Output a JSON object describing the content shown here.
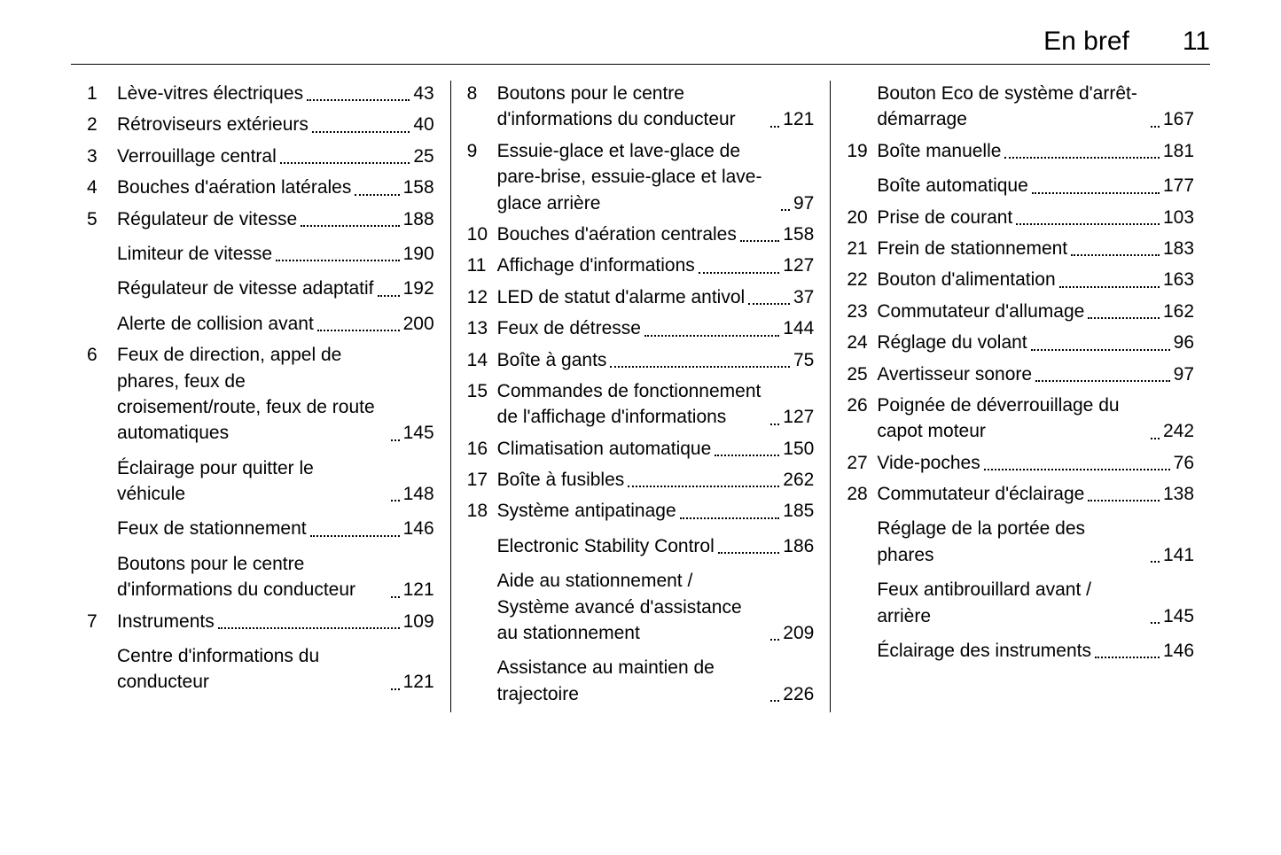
{
  "header": {
    "title": "En bref",
    "page": "11"
  },
  "columns": [
    [
      {
        "num": "1",
        "lines": [
          {
            "label": "Lève-vitres électriques",
            "page": "43"
          }
        ]
      },
      {
        "num": "2",
        "lines": [
          {
            "label": "Rétroviseurs extérieurs",
            "page": "40"
          }
        ]
      },
      {
        "num": "3",
        "lines": [
          {
            "label": "Verrouillage central",
            "page": "25"
          }
        ]
      },
      {
        "num": "4",
        "lines": [
          {
            "label": "Bouches d'aération latérales",
            "page": "158"
          }
        ]
      },
      {
        "num": "5",
        "lines": [
          {
            "label": "Régulateur de vitesse",
            "page": "188"
          },
          {
            "label": "Limiteur de vitesse",
            "page": "190",
            "sub": true
          },
          {
            "label": "Régulateur de vitesse adaptatif",
            "page": "192",
            "sub": true
          },
          {
            "label": "Alerte de collision avant",
            "page": "200",
            "sub": true
          }
        ]
      },
      {
        "num": "6",
        "lines": [
          {
            "label": "Feux de direction, appel de phares, feux de croisement/route, feux de route automatiques",
            "page": "145"
          },
          {
            "label": "Éclairage pour quitter le véhicule",
            "page": "148",
            "sub": true
          },
          {
            "label": "Feux de stationnement",
            "page": "146",
            "sub": true
          },
          {
            "label": "Boutons pour le centre d'informations du conducteur",
            "page": "121",
            "sub": true
          }
        ]
      },
      {
        "num": "7",
        "lines": [
          {
            "label": "Instruments",
            "page": "109"
          },
          {
            "label": "Centre d'informations du conducteur",
            "page": "121",
            "sub": true
          }
        ]
      }
    ],
    [
      {
        "num": "8",
        "lines": [
          {
            "label": "Boutons pour le centre d'informations du conducteur",
            "page": "121"
          }
        ]
      },
      {
        "num": "9",
        "lines": [
          {
            "label": "Essuie-glace et lave-glace de pare-brise, essuie-glace et lave-glace arrière",
            "page": "97"
          }
        ]
      },
      {
        "num": "10",
        "lines": [
          {
            "label": "Bouches d'aération centrales",
            "page": "158"
          }
        ]
      },
      {
        "num": "11",
        "lines": [
          {
            "label": "Affichage d'informations",
            "page": "127"
          }
        ]
      },
      {
        "num": "12",
        "lines": [
          {
            "label": "LED de statut d'alarme antivol",
            "page": "37"
          }
        ]
      },
      {
        "num": "13",
        "lines": [
          {
            "label": "Feux de détresse",
            "page": "144"
          }
        ]
      },
      {
        "num": "14",
        "lines": [
          {
            "label": "Boîte à gants",
            "page": "75"
          }
        ]
      },
      {
        "num": "15",
        "lines": [
          {
            "label": "Commandes de fonctionnement de l'affichage d'informations",
            "page": "127"
          }
        ]
      },
      {
        "num": "16",
        "lines": [
          {
            "label": "Climatisation automatique",
            "page": "150"
          }
        ]
      },
      {
        "num": "17",
        "lines": [
          {
            "label": "Boîte à fusibles",
            "page": "262"
          }
        ]
      },
      {
        "num": "18",
        "lines": [
          {
            "label": "Système antipatinage",
            "page": "185"
          },
          {
            "label": "Electronic Stability Control",
            "page": "186",
            "sub": true
          },
          {
            "label": "Aide au stationnement / Système avancé d'assistance au stationnement",
            "page": "209",
            "sub": true
          },
          {
            "label": "Assistance au maintien de trajectoire",
            "page": "226",
            "sub": true
          }
        ]
      }
    ],
    [
      {
        "num": "",
        "lines": [
          {
            "label": "Bouton Eco de système d'arrêt-démarrage",
            "page": "167"
          }
        ]
      },
      {
        "num": "19",
        "lines": [
          {
            "label": "Boîte manuelle",
            "page": "181"
          },
          {
            "label": "Boîte automatique",
            "page": "177",
            "sub": true
          }
        ]
      },
      {
        "num": "20",
        "lines": [
          {
            "label": "Prise de courant",
            "page": "103"
          }
        ]
      },
      {
        "num": "21",
        "lines": [
          {
            "label": "Frein de stationnement",
            "page": "183"
          }
        ]
      },
      {
        "num": "22",
        "lines": [
          {
            "label": "Bouton d'alimentation",
            "page": "163"
          }
        ]
      },
      {
        "num": "23",
        "lines": [
          {
            "label": "Commutateur d'allumage",
            "page": "162"
          }
        ]
      },
      {
        "num": "24",
        "lines": [
          {
            "label": "Réglage du volant",
            "page": "96"
          }
        ]
      },
      {
        "num": "25",
        "lines": [
          {
            "label": "Avertisseur sonore",
            "page": "97"
          }
        ]
      },
      {
        "num": "26",
        "lines": [
          {
            "label": "Poignée de déverrouillage du capot moteur",
            "page": "242"
          }
        ]
      },
      {
        "num": "27",
        "lines": [
          {
            "label": "Vide-poches",
            "page": "76"
          }
        ]
      },
      {
        "num": "28",
        "lines": [
          {
            "label": "Commutateur d'éclairage",
            "page": "138"
          },
          {
            "label": "Réglage de la portée des phares",
            "page": "141",
            "sub": true
          },
          {
            "label": "Feux antibrouillard avant / arrière",
            "page": "145",
            "sub": true
          },
          {
            "label": "Éclairage des instruments",
            "page": "146",
            "sub": true
          }
        ]
      }
    ]
  ]
}
